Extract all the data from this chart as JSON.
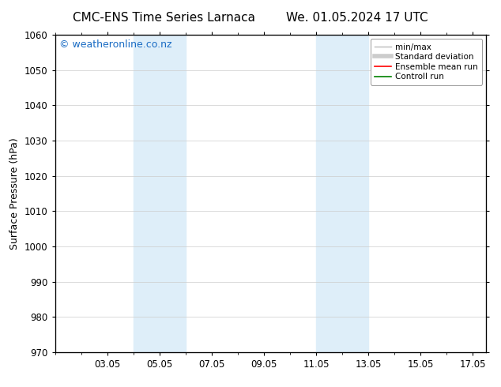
{
  "title_left": "CMC-ENS Time Series Larnaca",
  "title_right": "We. 01.05.2024 17 UTC",
  "ylabel": "Surface Pressure (hPa)",
  "ylim": [
    970,
    1060
  ],
  "yticks": [
    970,
    980,
    990,
    1000,
    1010,
    1020,
    1030,
    1040,
    1050,
    1060
  ],
  "xlim": [
    1.0,
    17.5
  ],
  "xtick_labels": [
    "03.05",
    "05.05",
    "07.05",
    "09.05",
    "11.05",
    "13.05",
    "15.05",
    "17.05"
  ],
  "xtick_positions": [
    3,
    5,
    7,
    9,
    11,
    13,
    15,
    17
  ],
  "shaded_bands": [
    {
      "xmin": 4.0,
      "xmax": 6.0
    },
    {
      "xmin": 11.0,
      "xmax": 13.0
    }
  ],
  "shaded_color": "#deeef9",
  "bg_color": "#ffffff",
  "watermark": "© weatheronline.co.nz",
  "watermark_color": "#1a6cc4",
  "watermark_fontsize": 9,
  "legend_items": [
    {
      "label": "min/max",
      "color": "#bbbbbb",
      "lw": 1.0,
      "linestyle": "-"
    },
    {
      "label": "Standard deviation",
      "color": "#cccccc",
      "lw": 4,
      "linestyle": "-"
    },
    {
      "label": "Ensemble mean run",
      "color": "#ff0000",
      "lw": 1.2,
      "linestyle": "-"
    },
    {
      "label": "Controll run",
      "color": "#008000",
      "lw": 1.2,
      "linestyle": "-"
    }
  ],
  "title_fontsize": 11,
  "axis_fontsize": 9,
  "tick_fontsize": 8.5,
  "grid_color": "#cccccc",
  "spine_color": "#000000"
}
